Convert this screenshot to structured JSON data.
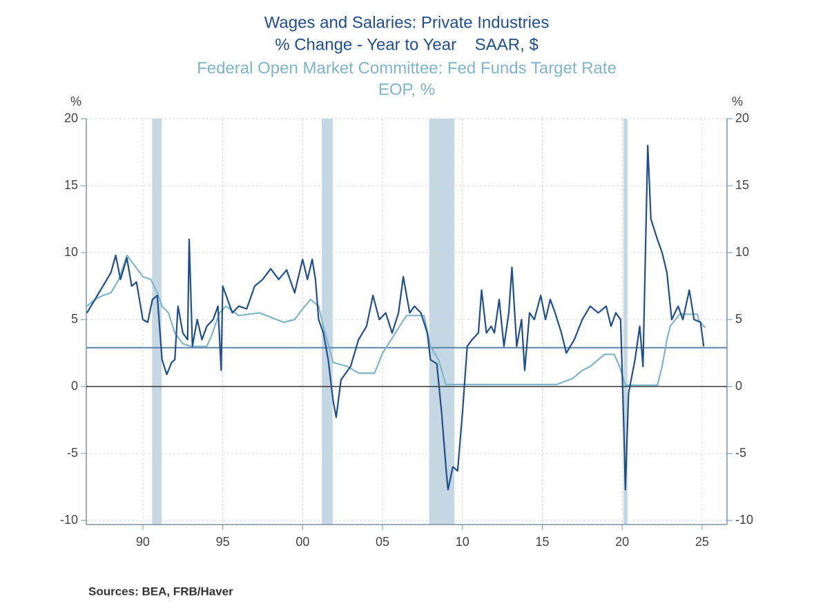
{
  "chart_data": {
    "type": "line",
    "series": [
      {
        "name": "Wages and Salaries: Private Industries",
        "units": "% Change - Year to Year    SAAR, $",
        "color": "#1f4e8c",
        "x": [
          1986.5,
          1987,
          1987.5,
          1988,
          1988.3,
          1988.6,
          1989,
          1989.3,
          1989.6,
          1990,
          1990.3,
          1990.6,
          1990.9,
          1991.2,
          1991.5,
          1991.8,
          1992,
          1992.2,
          1992.5,
          1992.8,
          1992.9,
          1993.1,
          1993.4,
          1993.7,
          1994,
          1994.4,
          1994.7,
          1994.9,
          1995,
          1995.3,
          1995.6,
          1996,
          1996.5,
          1997,
          1997.5,
          1998,
          1998.5,
          1999,
          1999.5,
          2000,
          2000.3,
          2000.6,
          2000.8,
          2001,
          2001.3,
          2001.6,
          2001.9,
          2002.1,
          2002.4,
          2002.7,
          2003,
          2003.5,
          2004,
          2004.4,
          2004.8,
          2005.2,
          2005.6,
          2006,
          2006.3,
          2006.7,
          2007,
          2007.4,
          2007.8,
          2008,
          2008.4,
          2008.7,
          2009,
          2009.1,
          2009.4,
          2009.7,
          2010,
          2010.3,
          2010.6,
          2011,
          2011.2,
          2011.5,
          2011.8,
          2012,
          2012.3,
          2012.6,
          2012.9,
          2013.1,
          2013.4,
          2013.7,
          2013.9,
          2014.2,
          2014.5,
          2014.9,
          2015.2,
          2015.5,
          2015.8,
          2016.2,
          2016.5,
          2017,
          2017.5,
          2018,
          2018.5,
          2019,
          2019.3,
          2019.6,
          2019.9,
          2020.1,
          2020.2,
          2020.4,
          2020.8,
          2021.1,
          2021.3,
          2021.6,
          2021.8,
          2022.2,
          2022.5,
          2022.8,
          2023.1,
          2023.5,
          2023.8,
          2024.2,
          2024.5,
          2024.9,
          2025.1
        ],
        "values": [
          5.5,
          6.5,
          7.5,
          8.5,
          9.8,
          8.0,
          9.6,
          7.5,
          7.8,
          5.0,
          4.8,
          6.5,
          6.8,
          2.0,
          0.9,
          1.8,
          2.0,
          6.0,
          4.0,
          3.5,
          11.0,
          3.0,
          5.0,
          3.5,
          4.5,
          5.0,
          6.0,
          1.2,
          7.5,
          6.5,
          5.5,
          6.0,
          5.8,
          7.5,
          8.0,
          8.8,
          8.0,
          8.7,
          7.0,
          9.5,
          8.0,
          9.5,
          8.0,
          5.0,
          4.0,
          2.0,
          -1.0,
          -2.3,
          0.5,
          1.0,
          1.5,
          3.5,
          4.5,
          6.8,
          5.0,
          5.5,
          4.0,
          5.5,
          8.2,
          5.5,
          6.0,
          5.5,
          4.0,
          2.0,
          1.7,
          -2.0,
          -6.5,
          -7.7,
          -6.0,
          -6.3,
          -2.0,
          3.0,
          3.5,
          4.0,
          7.2,
          4.0,
          4.5,
          4.0,
          6.5,
          3.0,
          5.5,
          8.9,
          3.0,
          5.0,
          1.2,
          5.5,
          5.0,
          6.8,
          5.0,
          6.5,
          5.5,
          4.0,
          2.5,
          3.5,
          5.0,
          6.0,
          5.5,
          6.0,
          4.5,
          5.5,
          5.0,
          -3.0,
          -7.7,
          -0.5,
          2.0,
          4.5,
          1.5,
          18.0,
          12.5,
          11.0,
          10.0,
          8.5,
          5.0,
          6.0,
          5.0,
          7.2,
          5.0,
          4.8,
          3.0
        ]
      },
      {
        "name": "Federal Open Market Committee: Fed Funds Target Rate",
        "units": "EOP, %",
        "color": "#7fb5c9",
        "x": [
          1986.5,
          1987,
          1987.5,
          1988,
          1988.5,
          1989,
          1989.5,
          1990,
          1990.5,
          1990.9,
          1991.2,
          1991.6,
          1992,
          1992.5,
          1993,
          1994,
          1994.3,
          1994.8,
          1995.2,
          1996,
          1997.3,
          1998.8,
          1999.5,
          2000,
          2000.5,
          2001,
          2001.3,
          2001.9,
          2002.8,
          2003.5,
          2004.5,
          2005,
          2006.5,
          2007.6,
          2008,
          2008.5,
          2008.96,
          2015.9,
          2016.9,
          2017.5,
          2018,
          2018.9,
          2019.5,
          2019.8,
          2020.2,
          2022.2,
          2022.5,
          2022.8,
          2023,
          2023.6,
          2024.7,
          2024.8,
          2025.2
        ],
        "values": [
          6.0,
          6.5,
          6.8,
          7.0,
          8.0,
          9.8,
          9.0,
          8.2,
          8.0,
          7.0,
          6.0,
          5.5,
          4.0,
          3.2,
          3.0,
          3.0,
          3.8,
          5.5,
          6.0,
          5.3,
          5.5,
          4.8,
          5.0,
          5.8,
          6.5,
          6.0,
          4.5,
          1.8,
          1.5,
          1.0,
          1.0,
          2.5,
          5.3,
          5.3,
          3.0,
          2.0,
          0.15,
          0.15,
          0.6,
          1.2,
          1.5,
          2.4,
          2.4,
          1.6,
          0.1,
          0.1,
          1.5,
          3.5,
          4.5,
          5.4,
          5.4,
          4.9,
          4.4
        ]
      }
    ],
    "shading": [
      [
        1990.58,
        1991.17
      ],
      [
        2001.2,
        2001.88
      ],
      [
        2007.92,
        2009.5
      ],
      [
        2020.08,
        2020.33
      ]
    ],
    "shading_color": "#c5d7e3",
    "hline": 2.9,
    "xlim": [
      1986.46,
      2026.56
    ],
    "xticks": [
      {
        "value": 1990,
        "label": "90"
      },
      {
        "value": 1995,
        "label": "95"
      },
      {
        "value": 2000,
        "label": "00"
      },
      {
        "value": 2005,
        "label": "05"
      },
      {
        "value": 2010,
        "label": "10"
      },
      {
        "value": 2015,
        "label": "15"
      },
      {
        "value": 2020,
        "label": "20"
      },
      {
        "value": 2025,
        "label": "25"
      }
    ],
    "ylim": [
      -10,
      20
    ],
    "yticks": [
      -10,
      -5,
      0,
      5,
      10,
      15,
      20
    ],
    "y2lim": [
      -10,
      20
    ],
    "y2ticks": [
      -10,
      -5,
      0,
      5,
      10,
      15,
      20
    ],
    "ylabel": "%",
    "y2label": "%",
    "grid": true,
    "source": "Sources:  BEA, FRB/Haver"
  }
}
